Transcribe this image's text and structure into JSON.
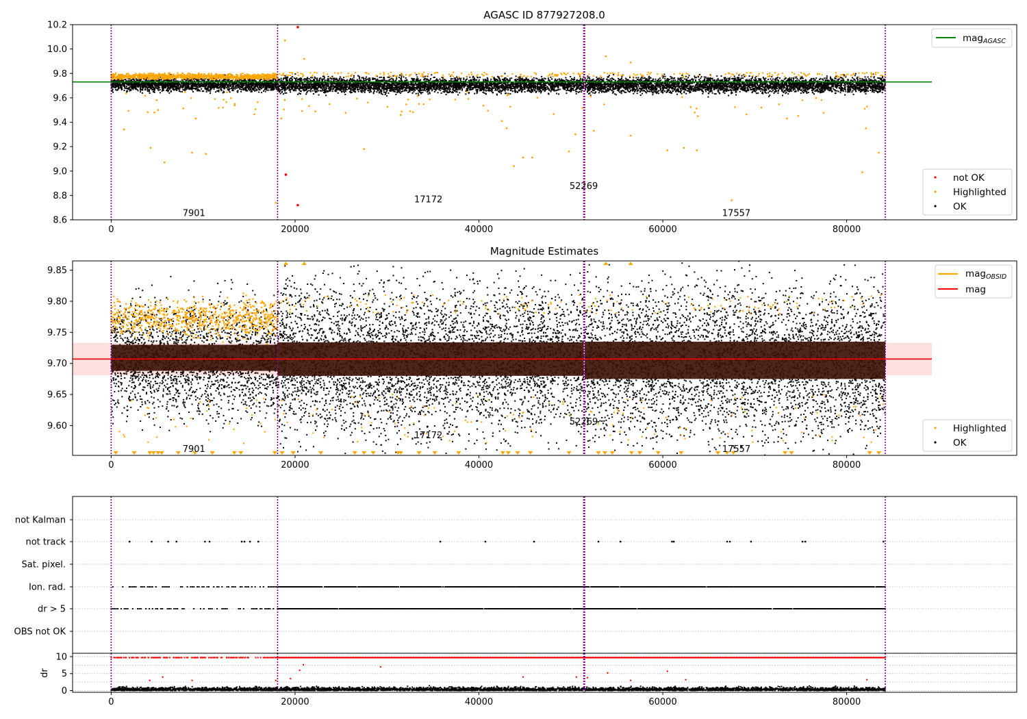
{
  "chart_data": [
    {
      "type": "scatter",
      "title": "AGASC ID 877927208.0",
      "xlim": [
        -4200,
        98500
      ],
      "ylim": [
        8.6,
        10.2
      ],
      "x_ticks": [
        "0",
        "20000",
        "40000",
        "60000",
        "80000"
      ],
      "y_ticks": [
        "8.6",
        "8.8",
        "9.0",
        "9.2",
        "9.4",
        "9.6",
        "9.8",
        "10.0",
        "10.2"
      ],
      "mag_agasc": 9.73,
      "obsid_boundaries": [
        0,
        18100,
        51400,
        51500,
        84200
      ],
      "obsid_labels": [
        {
          "text": "7901",
          "x": 9000,
          "y": 8.66
        },
        {
          "text": "17172",
          "x": 34500,
          "y": 8.77
        },
        {
          "text": "52269",
          "x": 51400,
          "y": 8.88
        },
        {
          "text": "17557",
          "x": 68000,
          "y": 8.66
        }
      ],
      "bands": [
        {
          "x0": 0,
          "x1": 18100,
          "center": 9.71,
          "half": 0.035,
          "hi_center": 9.77,
          "hi_half": 0.02
        },
        {
          "x0": 18100,
          "x1": 51400,
          "center": 9.705,
          "half": 0.04,
          "hi_center": 9.785,
          "hi_half": 0.0
        },
        {
          "x0": 51500,
          "x1": 84200,
          "center": 9.705,
          "half": 0.04,
          "hi_center": 9.785,
          "hi_half": 0.0
        }
      ],
      "highlighted_outliers": [
        [
          1400,
          9.34
        ],
        [
          4300,
          9.19
        ],
        [
          5800,
          9.07
        ],
        [
          8800,
          9.15
        ],
        [
          10300,
          9.14
        ],
        [
          9200,
          9.43
        ],
        [
          4700,
          9.48
        ],
        [
          5100,
          9.5
        ],
        [
          18900,
          10.07
        ],
        [
          21000,
          9.92
        ],
        [
          17900,
          8.74
        ],
        [
          18500,
          9.43
        ],
        [
          27500,
          9.18
        ],
        [
          31500,
          9.46
        ],
        [
          42500,
          9.41
        ],
        [
          43000,
          9.35
        ],
        [
          43800,
          9.04
        ],
        [
          44800,
          9.11
        ],
        [
          45800,
          9.11
        ],
        [
          49800,
          9.16
        ],
        [
          50500,
          9.3
        ],
        [
          52500,
          9.33
        ],
        [
          53800,
          9.94
        ],
        [
          56500,
          9.89
        ],
        [
          56500,
          9.29
        ],
        [
          60500,
          9.17
        ],
        [
          62300,
          9.19
        ],
        [
          63700,
          9.17
        ],
        [
          67500,
          8.76
        ],
        [
          73500,
          9.43
        ],
        [
          81700,
          8.99
        ],
        [
          82100,
          9.35
        ],
        [
          83500,
          9.15
        ]
      ],
      "not_ok_points": [
        [
          20300,
          10.18
        ],
        [
          19000,
          8.97
        ],
        [
          20300,
          8.72
        ]
      ],
      "legend_upper": [
        "mag"
      ],
      "legend_upper_sub": [
        "AGASC"
      ],
      "legend_lower": [
        "not OK",
        "Highlighted",
        "OK"
      ],
      "colors": {
        "ok": "#000000",
        "highlighted": "#ffa500",
        "not_ok": "#ff0000",
        "mag_agasc": "#008000",
        "obsid_line": "#800080"
      }
    },
    {
      "type": "scatter",
      "title": "Magnitude Estimates",
      "xlim": [
        -4200,
        98500
      ],
      "ylim": [
        9.552,
        9.865
      ],
      "x_ticks": [
        "0",
        "20000",
        "40000",
        "60000",
        "80000"
      ],
      "y_ticks": [
        "9.60",
        "9.65",
        "9.70",
        "9.75",
        "9.80",
        "9.85"
      ],
      "mag": 9.707,
      "mag_band": [
        9.681,
        9.733
      ],
      "obsid_mags": [
        {
          "x0": 0,
          "x1": 18100,
          "mag": 9.709,
          "band": [
            9.688,
            9.73
          ]
        },
        {
          "x0": 18100,
          "x1": 51400,
          "mag": 9.707,
          "band": [
            9.68,
            9.734
          ]
        },
        {
          "x0": 51500,
          "x1": 84200,
          "mag": 9.705,
          "band": [
            9.675,
            9.735
          ]
        }
      ],
      "obsid_labels": [
        {
          "text": "7901",
          "x": 9000,
          "y": 9.563
        },
        {
          "text": "17172",
          "x": 34500,
          "y": 9.585
        },
        {
          "text": "52269",
          "x": 51400,
          "y": 9.607
        },
        {
          "text": "17557",
          "x": 68000,
          "y": 9.563
        }
      ],
      "clipped_top_x": [
        19000,
        21000,
        53800,
        56500
      ],
      "clipped_bottom_x": [
        500,
        2500,
        4200,
        4600,
        5100,
        5500,
        7300,
        9100,
        11000,
        13400,
        14100,
        17800,
        18600,
        19800,
        22800,
        26500,
        27500,
        28500,
        31200,
        31500,
        33500,
        35200,
        37800,
        42600,
        43200,
        44200,
        45600,
        49800,
        53000,
        53700,
        54500,
        56600,
        57500,
        59500,
        62000,
        66000,
        67000,
        67700,
        73300,
        74000,
        82500,
        83500
      ],
      "legend_upper": [
        "mag",
        "mag"
      ],
      "legend_upper_sub": [
        "OBSID",
        ""
      ],
      "legend_lower": [
        "Highlighted",
        "OK"
      ],
      "colors": {
        "ok": "#000000",
        "highlighted": "#ffa500",
        "mag": "#ff0000",
        "mag_obsid": "#ffa500",
        "band": "#ffc0c0"
      }
    },
    {
      "type": "scatter",
      "title": "",
      "xlim": [
        -4200,
        98500
      ],
      "x_ticks": [
        "0",
        "20000",
        "40000",
        "60000",
        "80000"
      ],
      "flag_rows": [
        "not Kalman",
        "not track",
        "Sat. pixel.",
        "Ion. rad.",
        "dr > 5",
        "OBS not OK"
      ],
      "not_track_x": [
        2000,
        4400,
        6200,
        7100,
        10200,
        10700,
        14200,
        14500,
        15100,
        16000,
        35800,
        40700,
        46000,
        53000,
        55400,
        61000,
        61200,
        67000,
        67300,
        69600,
        75200,
        75500,
        84000
      ],
      "dense_rows": [
        {
          "row": "Ion. rad.",
          "sparse_x": [
            0,
            18100
          ],
          "dense_x": [
            18100,
            84200
          ]
        },
        {
          "row": "dr > 5",
          "sparse_x": [
            0,
            18100
          ],
          "dense_x": [
            18100,
            84200
          ]
        }
      ]
    },
    {
      "type": "scatter",
      "title": "",
      "xlim": [
        -4200,
        98500
      ],
      "ylim": [
        -0.5,
        11
      ],
      "ylabel": "dr",
      "x_ticks": [
        "0",
        "20000",
        "40000",
        "60000",
        "80000"
      ],
      "y_ticks": [
        "0",
        "5",
        "10"
      ],
      "red_top_value": 9.7,
      "red_scatter": [
        [
          4200,
          3.0
        ],
        [
          5600,
          4.0
        ],
        [
          8800,
          3.0
        ],
        [
          17900,
          3.0
        ],
        [
          19500,
          3.5
        ],
        [
          20500,
          6.0
        ],
        [
          20900,
          7.6
        ],
        [
          29300,
          7.0
        ],
        [
          44800,
          4.0
        ],
        [
          50600,
          4.0
        ],
        [
          51800,
          3.8
        ],
        [
          54000,
          5.2
        ],
        [
          56500,
          3.0
        ],
        [
          60500,
          5.7
        ],
        [
          62500,
          3.2
        ],
        [
          82200,
          3.2
        ]
      ]
    }
  ]
}
